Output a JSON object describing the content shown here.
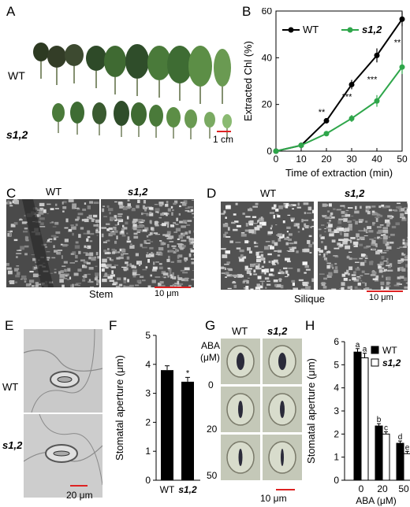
{
  "panels": {
    "A": "A",
    "B": "B",
    "C": "C",
    "D": "D",
    "E": "E",
    "F": "F",
    "G": "G",
    "H": "H"
  },
  "panelA": {
    "row1": "WT",
    "row2": "s1,2",
    "scale": "1 cm"
  },
  "panelB": {
    "ylabel": "Extracted Chl (%)",
    "xlabel": "Time of extraction (min)",
    "legend": [
      "WT",
      "s1,2"
    ],
    "yticks": [
      "0",
      "20",
      "40",
      "60"
    ],
    "xticks": [
      "0",
      "10",
      "20",
      "30",
      "40",
      "50"
    ]
  },
  "panelC": {
    "left": "WT",
    "right": "s1,2",
    "caption": "Stem",
    "scale": "10 μm"
  },
  "panelD": {
    "left": "WT",
    "right": "s1,2",
    "caption": "Silique",
    "scale": "10 μm"
  },
  "panelE": {
    "top": "WT",
    "bottom": "s1,2",
    "scale": "20 μm"
  },
  "panelF": {
    "ylabel": "Stomatal aperture (μm)",
    "yticks": [
      "0",
      "1",
      "2",
      "3",
      "4",
      "5"
    ],
    "xticks": [
      "WT",
      "s1,2"
    ],
    "sig": "*"
  },
  "panelG": {
    "col1": "WT",
    "col2": "s1,2",
    "aba": "ABA",
    "unit": "(μM)",
    "rows": [
      "0",
      "20",
      "50"
    ],
    "scale": "10 μm"
  },
  "panelH": {
    "ylabel": "Stomatal aperture (μm)",
    "xlabel": "ABA  (μM)",
    "yticks": [
      "0",
      "1",
      "2",
      "3",
      "4",
      "5",
      "6"
    ],
    "xticks": [
      "0",
      "20",
      "50"
    ],
    "legend": [
      "WT",
      "s1,2"
    ]
  },
  "chart_data": [
    {
      "type": "line",
      "panel": "B",
      "xlabel": "Time of extraction (min)",
      "ylabel": "Extracted Chl (%)",
      "xlim": [
        0,
        50
      ],
      "ylim": [
        0,
        60
      ],
      "x": [
        0,
        10,
        20,
        30,
        40,
        50
      ],
      "series": [
        {
          "name": "WT",
          "values": [
            0,
            2.5,
            13,
            28.5,
            41,
            56.5
          ],
          "err": [
            0,
            0.5,
            1,
            2,
            3,
            3
          ],
          "color": "#000000"
        },
        {
          "name": "s1,2",
          "values": [
            0,
            2.5,
            7.5,
            14,
            21.5,
            36
          ],
          "err": [
            0,
            0.5,
            1,
            1.5,
            2.5,
            3
          ],
          "color": "#2ea64a"
        }
      ],
      "significance": [
        {
          "x": 20,
          "label": "**"
        },
        {
          "x": 30,
          "label": "***"
        },
        {
          "x": 40,
          "label": "***"
        },
        {
          "x": 50,
          "label": "**"
        }
      ]
    },
    {
      "type": "bar",
      "panel": "F",
      "ylabel": "Stomatal aperture (μm)",
      "ylim": [
        0,
        5
      ],
      "categories": [
        "WT",
        "s1,2"
      ],
      "values": [
        3.8,
        3.4
      ],
      "err": [
        0.15,
        0.15
      ]
    },
    {
      "type": "bar",
      "panel": "H",
      "xlabel": "ABA (μM)",
      "ylabel": "Stomatal aperture (μm)",
      "ylim": [
        0,
        6
      ],
      "categories": [
        "0",
        "20",
        "50"
      ],
      "series": [
        {
          "name": "WT",
          "values": [
            5.55,
            2.35,
            1.6
          ],
          "err": [
            0.15,
            0.1,
            0.1
          ],
          "letters": [
            "a",
            "b",
            "d"
          ],
          "fill": "#000000"
        },
        {
          "name": "s1,2",
          "values": [
            5.3,
            2.0,
            1.15
          ],
          "err": [
            0.2,
            0.1,
            0.1
          ],
          "letters": [
            "a",
            "c",
            "e"
          ],
          "fill": "#ffffff"
        }
      ]
    }
  ]
}
